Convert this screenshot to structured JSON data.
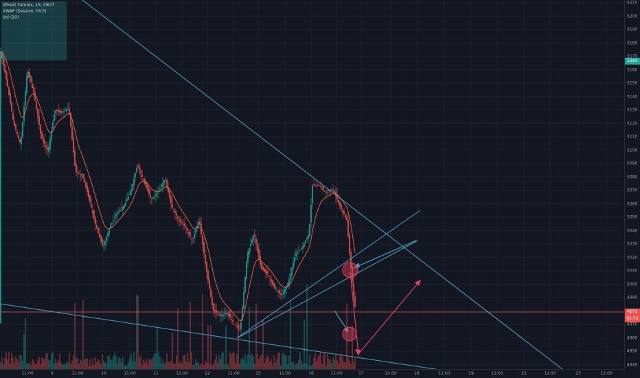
{
  "legend": {
    "symbol": "Wheat Futures, 15, CBOT",
    "vwap": "VWAP (Session, hlc3)",
    "vol": "Vol (20)"
  },
  "price_axis": [
    "5210",
    "5200",
    "5190",
    "5180",
    "5170",
    "5160",
    "5150",
    "5140",
    "5130",
    "5120",
    "5110",
    "5100",
    "5090",
    "5080",
    "5070",
    "5060",
    "5050",
    "5040",
    "5030",
    "5020",
    "5010",
    "5000",
    "4990",
    "4980",
    "4970",
    "4960",
    "4950",
    "4940"
  ],
  "last_price_tag": "5164",
  "current_price_tag": "4972",
  "countdown_tag": "01:52",
  "time_axis": [
    "11:00",
    "9",
    "11:00",
    "10",
    "11:00",
    "11",
    "11:00",
    "12",
    "11:00",
    "15",
    "11:00",
    "16",
    "11:00",
    "17",
    "12:00",
    "18",
    "12:00",
    "19",
    "12:00",
    "22",
    "12:00",
    "23",
    "12:00"
  ],
  "colors": {
    "background": "#131722",
    "candle_up": "#26a69a",
    "candle_down": "#ef5350",
    "trendline": "#4aa3c9",
    "annotation": "#e0415b"
  }
}
